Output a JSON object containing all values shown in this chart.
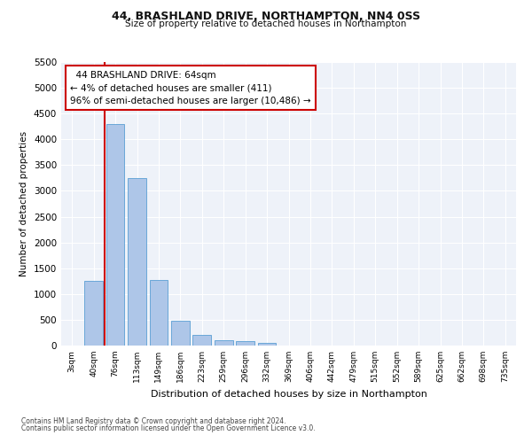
{
  "title": "44, BRASHLAND DRIVE, NORTHAMPTON, NN4 0SS",
  "subtitle": "Size of property relative to detached houses in Northampton",
  "xlabel": "Distribution of detached houses by size in Northampton",
  "ylabel": "Number of detached properties",
  "bar_color": "#aec6e8",
  "bar_edge_color": "#5a9fd4",
  "background_color": "#eef2f9",
  "grid_color": "#ffffff",
  "annotation_box_color": "#cc0000",
  "vline_color": "#cc0000",
  "categories": [
    "3sqm",
    "40sqm",
    "76sqm",
    "113sqm",
    "149sqm",
    "186sqm",
    "223sqm",
    "259sqm",
    "296sqm",
    "332sqm",
    "369sqm",
    "406sqm",
    "442sqm",
    "479sqm",
    "515sqm",
    "552sqm",
    "589sqm",
    "625sqm",
    "662sqm",
    "698sqm",
    "735sqm"
  ],
  "values": [
    0,
    1250,
    4300,
    3250,
    1275,
    480,
    200,
    100,
    80,
    50,
    0,
    0,
    0,
    0,
    0,
    0,
    0,
    0,
    0,
    0,
    0
  ],
  "ylim": [
    0,
    5500
  ],
  "yticks": [
    0,
    500,
    1000,
    1500,
    2000,
    2500,
    3000,
    3500,
    4000,
    4500,
    5000,
    5500
  ],
  "annotation_text_line1": "  44 BRASHLAND DRIVE: 64sqm  ",
  "annotation_text_line2": "← 4% of detached houses are smaller (411)",
  "annotation_text_line3": "96% of semi-detached houses are larger (10,486) →",
  "footer_line1": "Contains HM Land Registry data © Crown copyright and database right 2024.",
  "footer_line2": "Contains public sector information licensed under the Open Government Licence v3.0.",
  "vline_x_index": 1.5
}
